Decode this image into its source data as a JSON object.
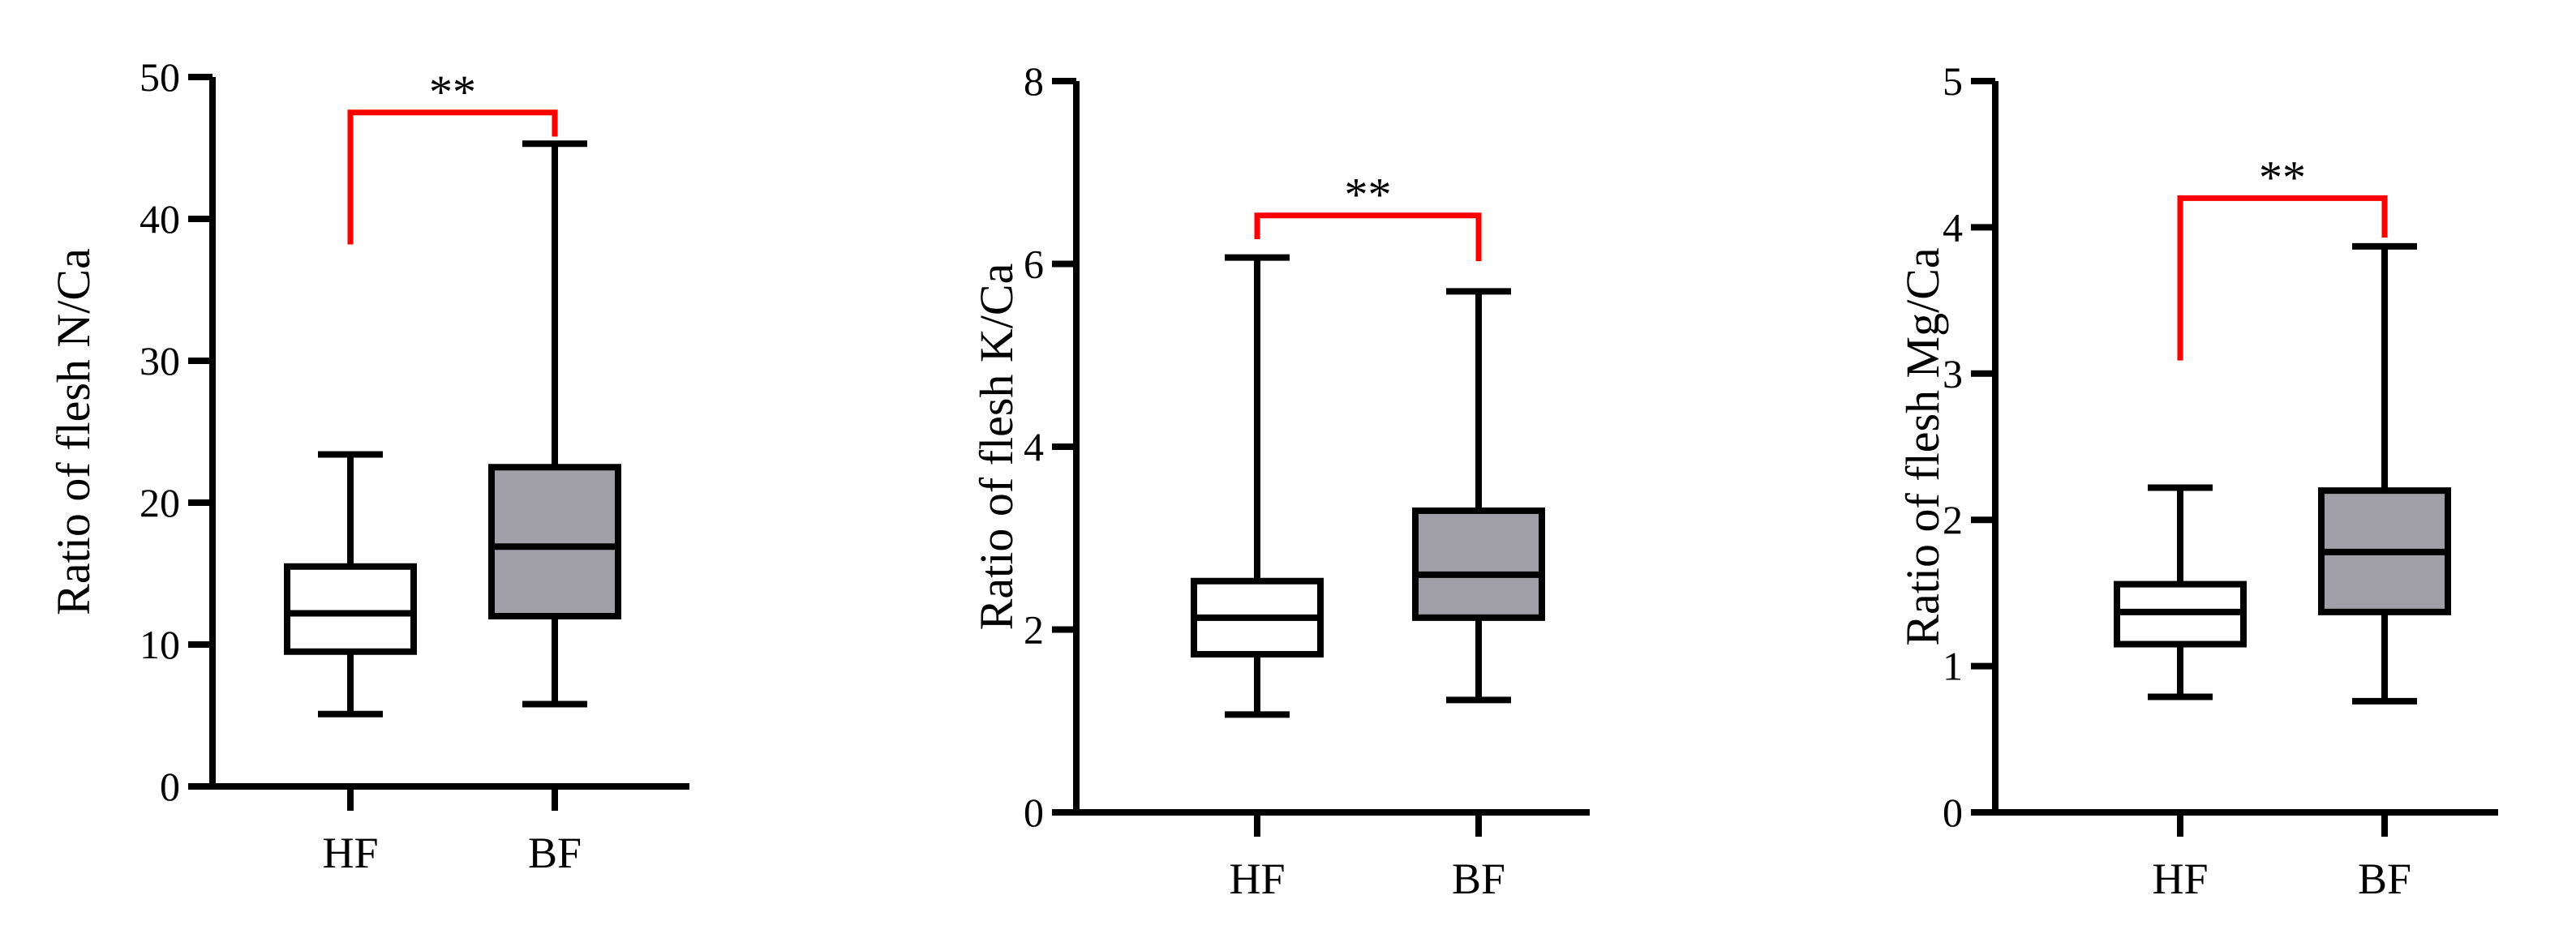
{
  "chart_data": [
    {
      "type": "boxplot",
      "ylabel": "Ratio of flesh N/Ca",
      "ylim": [
        0,
        50
      ],
      "yticks": [
        0,
        10,
        20,
        30,
        40,
        50
      ],
      "categories": [
        "HF",
        "BF"
      ],
      "boxes": [
        {
          "category": "HF",
          "min": 5.1,
          "q1": 9.5,
          "median": 12.2,
          "q3": 15.5,
          "max": 23.4,
          "fill": "#ffffff"
        },
        {
          "category": "BF",
          "min": 5.8,
          "q1": 12.0,
          "median": 16.9,
          "q3": 22.5,
          "max": 45.3,
          "fill": "#a09fa8"
        }
      ],
      "significance": {
        "label": "**",
        "color": "#ff0000",
        "left_bottom": 38.2,
        "right_bottom": 45.8,
        "top": 47.5
      }
    },
    {
      "type": "boxplot",
      "ylabel": "Ratio of flesh K/Ca",
      "ylim": [
        0,
        8
      ],
      "yticks": [
        0,
        2,
        4,
        6,
        8
      ],
      "categories": [
        "HF",
        "BF"
      ],
      "boxes": [
        {
          "category": "HF",
          "min": 1.07,
          "q1": 1.73,
          "median": 2.13,
          "q3": 2.53,
          "max": 6.07,
          "fill": "#ffffff"
        },
        {
          "category": "BF",
          "min": 1.23,
          "q1": 2.13,
          "median": 2.6,
          "q3": 3.3,
          "max": 5.7,
          "fill": "#a09fa8"
        }
      ],
      "significance": {
        "label": "**",
        "color": "#ff0000",
        "left_bottom": 6.27,
        "right_bottom": 6.03,
        "top": 6.53
      }
    },
    {
      "type": "boxplot",
      "ylabel": "Ratio of flesh Mg/Ca",
      "ylim": [
        0,
        5
      ],
      "yticks": [
        0,
        1,
        2,
        3,
        4,
        5
      ],
      "categories": [
        "HF",
        "BF"
      ],
      "boxes": [
        {
          "category": "HF",
          "min": 0.79,
          "q1": 1.15,
          "median": 1.37,
          "q3": 1.56,
          "max": 2.22,
          "fill": "#ffffff"
        },
        {
          "category": "BF",
          "min": 0.76,
          "q1": 1.37,
          "median": 1.78,
          "q3": 2.2,
          "max": 3.87,
          "fill": "#a09fa8"
        }
      ],
      "significance": {
        "label": "**",
        "color": "#ff0000",
        "left_bottom": 3.09,
        "right_bottom": 3.93,
        "top": 4.2
      }
    }
  ]
}
